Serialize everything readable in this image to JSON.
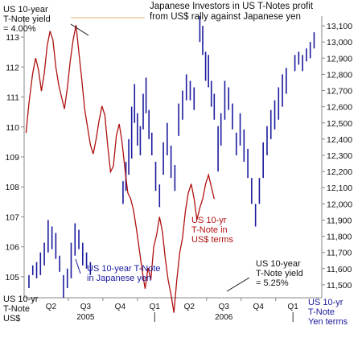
{
  "chart_data": {
    "type": "line",
    "title": "Japanese Investors in US T-Notes profit\nfrom US$ rally against Japanese yen",
    "x_ticks": [
      "Q2",
      "Q3",
      "Q4",
      "Q1",
      "Q2",
      "Q3",
      "Q4",
      "Q1"
    ],
    "year_labels": [
      "2005",
      "2006"
    ],
    "left_axis": {
      "ticks": [
        105,
        106,
        107,
        108,
        109,
        110,
        111,
        112,
        113
      ],
      "range": [
        104.3,
        113.7
      ]
    },
    "right_axis": {
      "ticks": [
        "11,500",
        "11,600",
        "11,700",
        "11,800",
        "11,900",
        "12,000",
        "12,100",
        "12,200",
        "12,300",
        "12,400",
        "12,500",
        "12,600",
        "12,700",
        "12,800",
        "12,900",
        "13,000",
        "13,100"
      ],
      "range": [
        11420,
        13160
      ]
    },
    "series": [
      {
        "name": "US 10-yr T-Note in US$ terms",
        "axis": "left",
        "color": "#b01010",
        "t": [
          0.02,
          0.05,
          0.09,
          0.12,
          0.15,
          0.18,
          0.21,
          0.24,
          0.27,
          0.3,
          0.33,
          0.36,
          0.39,
          0.42,
          0.45,
          0.48,
          0.51,
          0.54,
          0.57,
          0.6,
          0.63,
          0.66,
          0.69,
          0.72,
          0.75,
          0.78,
          0.81,
          0.84,
          0.87,
          0.9,
          0.93,
          0.96,
          0.99,
          1.02,
          1.05,
          1.08,
          1.11,
          1.14,
          1.17,
          1.2,
          1.23,
          1.26,
          1.29,
          1.32,
          1.35,
          1.38,
          1.41,
          1.44,
          1.47,
          1.5,
          1.53,
          1.56,
          1.59,
          1.62,
          1.65,
          1.68,
          1.71,
          1.74,
          1.77,
          1.8,
          1.83,
          1.86,
          1.89,
          1.92,
          1.95,
          1.98
        ],
        "values": [
          109.8,
          110.8,
          111.8,
          112.3,
          111.9,
          111.2,
          111.8,
          112.7,
          113.2,
          112.9,
          112.0,
          111.4,
          111.0,
          110.6,
          111.3,
          112.2,
          112.9,
          113.4,
          112.5,
          111.6,
          110.6,
          110.0,
          109.4,
          109.1,
          109.6,
          110.2,
          110.7,
          110.4,
          109.4,
          108.5,
          108.7,
          109.7,
          110.1,
          109.5,
          108.6,
          107.8,
          107.6,
          107.2,
          106.6,
          105.9,
          105.2,
          104.6,
          105.3,
          104.9,
          106.0,
          106.4,
          107.0,
          106.5,
          105.6,
          104.9,
          104.4,
          103.8,
          104.9,
          105.8,
          106.3,
          107.2,
          107.8,
          108.1,
          107.6,
          106.9,
          107.3,
          107.6,
          108.1,
          108.4,
          108.0,
          107.6
        ]
      },
      {
        "name": "US 10-year T-Note in Japanese yen",
        "axis": "right",
        "color": "#1a1a9e",
        "bars": [
          [
            0.05,
            11480,
            11560
          ],
          [
            0.09,
            11560,
            11620
          ],
          [
            0.13,
            11540,
            11640
          ],
          [
            0.17,
            11560,
            11700
          ],
          [
            0.21,
            11620,
            11760
          ],
          [
            0.25,
            11700,
            11900
          ],
          [
            0.29,
            11720,
            11860
          ],
          [
            0.33,
            11660,
            11820
          ],
          [
            0.37,
            11580,
            11680
          ],
          [
            0.41,
            11420,
            11560
          ],
          [
            0.45,
            11480,
            11600
          ],
          [
            0.49,
            11540,
            11760
          ],
          [
            0.53,
            11680,
            11880
          ],
          [
            0.57,
            11720,
            11840
          ],
          [
            0.61,
            11620,
            11760
          ],
          [
            0.65,
            11600,
            11700
          ],
          [
            0.69,
            11560,
            11640
          ],
          [
            1.03,
            12000,
            12140
          ],
          [
            1.06,
            12080,
            12260
          ],
          [
            1.09,
            12180,
            12400
          ],
          [
            1.12,
            12280,
            12600
          ],
          [
            1.15,
            12500,
            12740
          ],
          [
            1.18,
            12360,
            12560
          ],
          [
            1.21,
            12300,
            12480
          ],
          [
            1.24,
            12460,
            12680
          ],
          [
            1.27,
            12560,
            12780
          ],
          [
            1.3,
            12400,
            12580
          ],
          [
            1.33,
            12300,
            12440
          ],
          [
            1.37,
            12080,
            12260
          ],
          [
            1.41,
            11980,
            12120
          ],
          [
            1.45,
            12180,
            12380
          ],
          [
            1.49,
            12300,
            12500
          ],
          [
            1.53,
            12160,
            12360
          ],
          [
            1.57,
            12080,
            12240
          ],
          [
            1.61,
            12420,
            12620
          ],
          [
            1.65,
            12520,
            12700
          ],
          [
            1.69,
            12640,
            12800
          ],
          [
            1.73,
            12640,
            12760
          ],
          [
            1.77,
            12580,
            12720
          ],
          [
            1.83,
            13000,
            13160
          ],
          [
            1.86,
            12920,
            13100
          ],
          [
            1.89,
            12760,
            12940
          ],
          [
            1.92,
            12720,
            12920
          ],
          [
            1.95,
            12600,
            12760
          ],
          [
            1.98,
            12520,
            12680
          ],
          [
            2.02,
            12200,
            12480
          ],
          [
            2.05,
            12360,
            12560
          ],
          [
            2.09,
            12520,
            12760
          ],
          [
            2.13,
            12580,
            12720
          ],
          [
            2.17,
            12460,
            12620
          ],
          [
            2.21,
            12300,
            12440
          ],
          [
            2.25,
            12360,
            12560
          ],
          [
            2.29,
            12260,
            12460
          ],
          [
            2.33,
            12160,
            12340
          ],
          [
            2.37,
            12000,
            12160
          ],
          [
            2.41,
            11860,
            12000
          ],
          [
            2.45,
            12000,
            12160
          ],
          [
            2.49,
            12160,
            12380
          ],
          [
            2.53,
            12300,
            12480
          ],
          [
            2.57,
            12400,
            12580
          ],
          [
            2.61,
            12460,
            12640
          ],
          [
            2.65,
            12520,
            12720
          ],
          [
            2.69,
            12600,
            12800
          ],
          [
            2.73,
            12680,
            12840
          ],
          [
            2.82,
            12820,
            12920
          ],
          [
            2.86,
            12860,
            12940
          ],
          [
            2.9,
            12820,
            12920
          ],
          [
            2.94,
            12880,
            12960
          ],
          [
            2.98,
            12900,
            13000
          ],
          [
            3.02,
            12960,
            13060
          ]
        ]
      }
    ],
    "grid": false
  },
  "annotations": {
    "top_left": "US 10-year\nT-Note yield\n= 4.00%",
    "red_series": "US 10-yr\nT-Note in\nUS$ terms",
    "blue_series": "US 10-year T-Note\nin Japanese yen",
    "bottom_right": "US 10-year\nT-Note yield\n= 5.25%",
    "left_axis_label": "US 10-yr\nT-Note\nUS$",
    "right_axis_label": "US 10-yr\nT-Note\nYen terms"
  }
}
